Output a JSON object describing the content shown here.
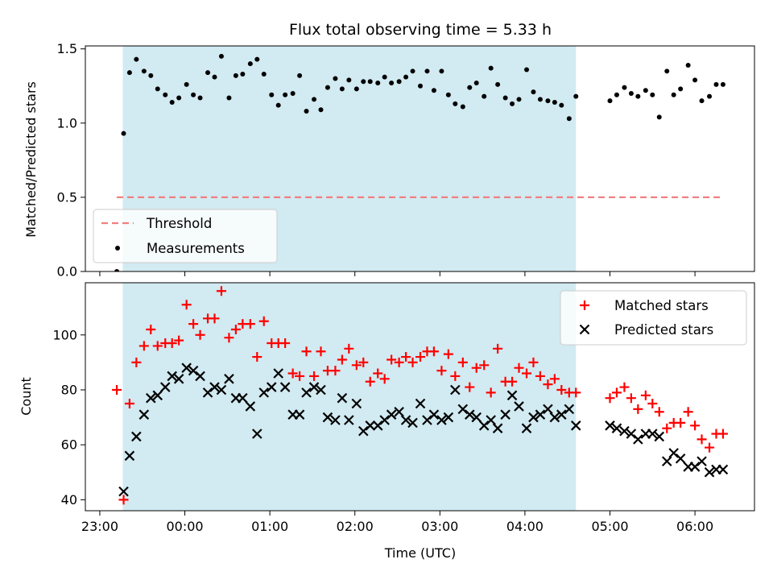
{
  "chart_data": [
    {
      "type": "scatter",
      "title": "Flux total observing time = 5.33 h",
      "xlabel": "",
      "ylabel": "Matched/Predicted stars",
      "x_unit": "hours since 23:00 UTC",
      "xlim": [
        -0.17,
        7.7
      ],
      "ylim": [
        0,
        1.52
      ],
      "yticks": [
        0.0,
        0.5,
        1.0,
        1.5
      ],
      "ytick_labels": [
        "0.0",
        "0.5",
        "1.0",
        "1.5"
      ],
      "observing_window": [
        0.27,
        5.6
      ],
      "threshold": {
        "name": "Threshold",
        "value": 0.5,
        "x_range": [
          0.2,
          7.3
        ],
        "color": "#f08080"
      },
      "colors": {
        "window": "#add8e6",
        "measurements": "#000000"
      },
      "legend": {
        "position": "lower-left",
        "entries": [
          "Threshold",
          "Measurements"
        ]
      },
      "series": [
        {
          "name": "Measurements",
          "marker": "dot",
          "x": [
            0.2,
            0.28,
            0.35,
            0.43,
            0.52,
            0.6,
            0.68,
            0.77,
            0.85,
            0.93,
            1.02,
            1.1,
            1.18,
            1.27,
            1.35,
            1.43,
            1.52,
            1.6,
            1.68,
            1.77,
            1.85,
            1.93,
            2.02,
            2.1,
            2.18,
            2.27,
            2.35,
            2.43,
            2.52,
            2.6,
            2.68,
            2.77,
            2.85,
            2.93,
            3.02,
            3.1,
            3.18,
            3.27,
            3.35,
            3.43,
            3.52,
            3.6,
            3.68,
            3.77,
            3.85,
            3.93,
            4.02,
            4.1,
            4.18,
            4.27,
            4.35,
            4.43,
            4.52,
            4.6,
            4.68,
            4.77,
            4.85,
            4.93,
            5.02,
            5.1,
            5.18,
            5.27,
            5.35,
            5.43,
            5.52,
            5.6,
            6.0,
            6.08,
            6.17,
            6.25,
            6.33,
            6.42,
            6.5,
            6.58,
            6.67,
            6.75,
            6.83,
            6.92,
            7.0,
            7.08,
            7.17,
            7.25,
            7.33
          ],
          "y": [
            0.0,
            0.93,
            1.34,
            1.43,
            1.35,
            1.32,
            1.23,
            1.19,
            1.14,
            1.17,
            1.26,
            1.19,
            1.17,
            1.34,
            1.31,
            1.45,
            1.17,
            1.32,
            1.33,
            1.4,
            1.43,
            1.33,
            1.19,
            1.12,
            1.19,
            1.2,
            1.32,
            1.08,
            1.16,
            1.09,
            1.24,
            1.3,
            1.23,
            1.29,
            1.23,
            1.28,
            1.28,
            1.27,
            1.31,
            1.27,
            1.28,
            1.31,
            1.35,
            1.25,
            1.35,
            1.22,
            1.35,
            1.19,
            1.13,
            1.11,
            1.24,
            1.27,
            1.18,
            1.37,
            1.26,
            1.17,
            1.13,
            1.16,
            1.36,
            1.21,
            1.16,
            1.15,
            1.14,
            1.12,
            1.03,
            1.18,
            1.15,
            1.19,
            1.24,
            1.2,
            1.18,
            1.22,
            1.19,
            1.04,
            1.35,
            1.19,
            1.23,
            1.39,
            1.29,
            1.15,
            1.18,
            1.26,
            1.26
          ]
        }
      ]
    },
    {
      "type": "scatter",
      "title": "",
      "xlabel": "Time (UTC)",
      "ylabel": "Count",
      "x_unit": "hours since 23:00 UTC",
      "xlim": [
        -0.17,
        7.7
      ],
      "ylim": [
        36,
        119
      ],
      "xticks": [
        0,
        1,
        2,
        3,
        4,
        5,
        6,
        7
      ],
      "xtick_labels": [
        "23:00",
        "00:00",
        "01:00",
        "02:00",
        "03:00",
        "04:00",
        "05:00",
        "06:00"
      ],
      "yticks": [
        40,
        60,
        80,
        100
      ],
      "ytick_labels": [
        "40",
        "60",
        "80",
        "100"
      ],
      "observing_window": [
        0.27,
        5.6
      ],
      "colors": {
        "window": "#add8e6",
        "matched": "#ff0000",
        "predicted": "#000000"
      },
      "legend": {
        "position": "upper-right",
        "entries": [
          "Matched stars",
          "Predicted stars"
        ]
      },
      "series": [
        {
          "name": "Matched stars",
          "marker": "plus",
          "x": [
            0.2,
            0.28,
            0.35,
            0.43,
            0.52,
            0.6,
            0.68,
            0.77,
            0.85,
            0.93,
            1.02,
            1.1,
            1.18,
            1.27,
            1.35,
            1.43,
            1.52,
            1.6,
            1.68,
            1.77,
            1.85,
            1.93,
            2.02,
            2.1,
            2.18,
            2.27,
            2.35,
            2.43,
            2.52,
            2.6,
            2.68,
            2.77,
            2.85,
            2.93,
            3.02,
            3.1,
            3.18,
            3.27,
            3.35,
            3.43,
            3.52,
            3.6,
            3.68,
            3.77,
            3.85,
            3.93,
            4.02,
            4.1,
            4.18,
            4.27,
            4.35,
            4.43,
            4.52,
            4.6,
            4.68,
            4.77,
            4.85,
            4.93,
            5.02,
            5.1,
            5.18,
            5.27,
            5.35,
            5.43,
            5.52,
            5.6,
            6.0,
            6.08,
            6.17,
            6.25,
            6.33,
            6.42,
            6.5,
            6.58,
            6.67,
            6.75,
            6.83,
            6.92,
            7.0,
            7.08,
            7.17,
            7.25,
            7.33
          ],
          "y": [
            80,
            40,
            75,
            90,
            96,
            102,
            96,
            97,
            97,
            98,
            111,
            104,
            100,
            106,
            106,
            116,
            99,
            102,
            104,
            104,
            92,
            105,
            97,
            97,
            97,
            86,
            85,
            94,
            85,
            94,
            87,
            87,
            91,
            95,
            89,
            90,
            83,
            86,
            84,
            91,
            90,
            92,
            90,
            92,
            94,
            94,
            87,
            93,
            85,
            90,
            81,
            88,
            89,
            79,
            95,
            83,
            83,
            88,
            86,
            90,
            85,
            82,
            84,
            80,
            79,
            79,
            77,
            79,
            81,
            77,
            73,
            78,
            75,
            72,
            66,
            68,
            68,
            72,
            67,
            62,
            59,
            64,
            64
          ]
        },
        {
          "name": "Predicted stars",
          "marker": "x",
          "x": [
            0.28,
            0.35,
            0.43,
            0.52,
            0.6,
            0.68,
            0.77,
            0.85,
            0.93,
            1.02,
            1.1,
            1.18,
            1.27,
            1.35,
            1.43,
            1.52,
            1.6,
            1.68,
            1.77,
            1.85,
            1.93,
            2.02,
            2.1,
            2.18,
            2.27,
            2.35,
            2.43,
            2.52,
            2.6,
            2.68,
            2.77,
            2.85,
            2.93,
            3.02,
            3.1,
            3.18,
            3.27,
            3.35,
            3.43,
            3.52,
            3.6,
            3.68,
            3.77,
            3.85,
            3.93,
            4.02,
            4.1,
            4.18,
            4.27,
            4.35,
            4.43,
            4.52,
            4.6,
            4.68,
            4.77,
            4.85,
            4.93,
            5.02,
            5.1,
            5.18,
            5.27,
            5.35,
            5.43,
            5.52,
            5.6,
            6.0,
            6.08,
            6.17,
            6.25,
            6.33,
            6.42,
            6.5,
            6.58,
            6.67,
            6.75,
            6.83,
            6.92,
            7.0,
            7.08,
            7.17,
            7.25,
            7.33
          ],
          "y": [
            43,
            56,
            63,
            71,
            77,
            78,
            81,
            85,
            84,
            88,
            87,
            85,
            79,
            81,
            80,
            84,
            77,
            77,
            74,
            64,
            79,
            81,
            86,
            81,
            71,
            71,
            79,
            81,
            80,
            70,
            69,
            77,
            69,
            75,
            65,
            67,
            67,
            69,
            71,
            72,
            69,
            68,
            75,
            69,
            71,
            69,
            70,
            80,
            73,
            71,
            70,
            67,
            69,
            66,
            71,
            78,
            74,
            66,
            70,
            71,
            73,
            70,
            71,
            73,
            67,
            67,
            66,
            65,
            64,
            62,
            64,
            64,
            63,
            54,
            57,
            55,
            52,
            52,
            54,
            50,
            51,
            51
          ]
        }
      ]
    }
  ]
}
